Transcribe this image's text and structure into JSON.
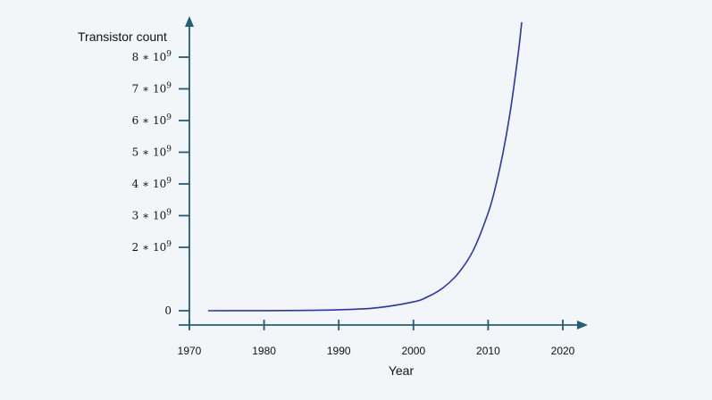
{
  "chart_data": {
    "type": "line",
    "title": "",
    "xlabel": "Year",
    "ylabel": "Transistor count",
    "xlim": [
      1970,
      2020
    ],
    "ylim": [
      0,
      8000000000
    ],
    "x_ticks": [
      1970,
      1980,
      1990,
      2000,
      2010,
      2020
    ],
    "y_ticks": [
      {
        "value": 0,
        "label": "0",
        "mantissa": "",
        "exponent": ""
      },
      {
        "value": 2000000000,
        "label": "2 * 10^9",
        "mantissa": "2 ∗ 10",
        "exponent": "9"
      },
      {
        "value": 3000000000,
        "label": "3 * 10^9",
        "mantissa": "3 ∗ 10",
        "exponent": "9"
      },
      {
        "value": 4000000000,
        "label": "4 * 10^9",
        "mantissa": "4 ∗ 10",
        "exponent": "9"
      },
      {
        "value": 5000000000,
        "label": "5 * 10^9",
        "mantissa": "5 ∗ 10",
        "exponent": "9"
      },
      {
        "value": 6000000000,
        "label": "6 * 10^9",
        "mantissa": "6 ∗ 10",
        "exponent": "9"
      },
      {
        "value": 7000000000,
        "label": "7 * 10^9",
        "mantissa": "7 ∗ 10",
        "exponent": "9"
      },
      {
        "value": 8000000000,
        "label": "8 * 10^9",
        "mantissa": "8 ∗ 10",
        "exponent": "9"
      }
    ],
    "grid": false,
    "legend": "none",
    "colors": {
      "axis": "#1f5f7a",
      "line": "#2a35b0",
      "background": "#f2f6f9"
    },
    "series": [
      {
        "x": [
          1972.5,
          1975,
          1980,
          1985,
          1990,
          1995,
          2000,
          2002,
          2004,
          2006,
          2008,
          2010,
          2011,
          2012,
          2013,
          2014,
          2014.5
        ],
        "values": [
          0,
          1000000,
          3000000,
          10000000,
          30000000,
          90000000,
          280000000,
          450000000,
          730000000,
          1180000000,
          1900000000,
          3080000000,
          3920000000,
          4990000000,
          6340000000,
          8060000000,
          9100000000
        ]
      }
    ]
  }
}
